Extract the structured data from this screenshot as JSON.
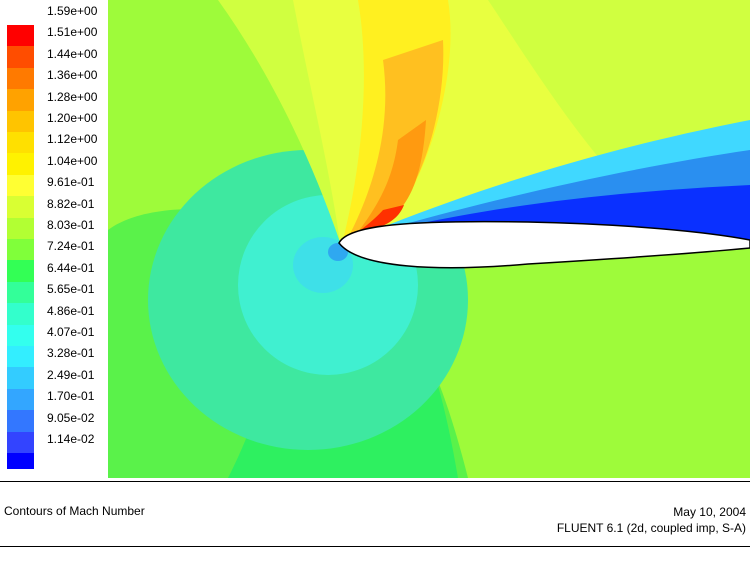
{
  "legend": {
    "labels": [
      "1.59e+00",
      "1.51e+00",
      "1.44e+00",
      "1.36e+00",
      "1.28e+00",
      "1.20e+00",
      "1.12e+00",
      "1.04e+00",
      "9.61e-01",
      "8.82e-01",
      "8.03e-01",
      "7.24e-01",
      "6.44e-01",
      "5.65e-01",
      "4.86e-01",
      "4.07e-01",
      "3.28e-01",
      "2.49e-01",
      "1.70e-01",
      "9.05e-02",
      "1.14e-02"
    ],
    "colors": [
      "#ff0000",
      "#ff4d00",
      "#ff7a00",
      "#ffa200",
      "#ffc400",
      "#ffe000",
      "#fff200",
      "#ffff33",
      "#d9ff33",
      "#b2ff33",
      "#80ff3a",
      "#33ff55",
      "#33ff99",
      "#33ffcc",
      "#33ffee",
      "#33eeff",
      "#33ccff",
      "#33a6ff",
      "#3377ff",
      "#3344ff",
      "#0000ff"
    ]
  },
  "plot": {
    "colors": {
      "far_field": "#9efb3a",
      "near_lower": "#5af24a",
      "green_mid": "#2ef060",
      "teal_big": "#3ee8a0",
      "cyan_mid": "#40f0d0",
      "cyan_light": "#3ee0e8",
      "stag": "#2fa8f0",
      "upper_yellow": "#e8ff40",
      "upper_lime": "#d0ff40",
      "yellow_band": "#fff020",
      "orange1": "#ffc020",
      "orange2": "#ff9a10",
      "red": "#ff3000",
      "wake_blue": "#0a30ff",
      "wake_mid": "#2a8ff0",
      "wake_light": "#40d8ff",
      "airfoil": "#ffffff"
    }
  },
  "footer": {
    "title": "Contours of Mach Number",
    "date": "May 10, 2004",
    "solver": "FLUENT 6.1 (2d, coupled imp, S-A)"
  }
}
